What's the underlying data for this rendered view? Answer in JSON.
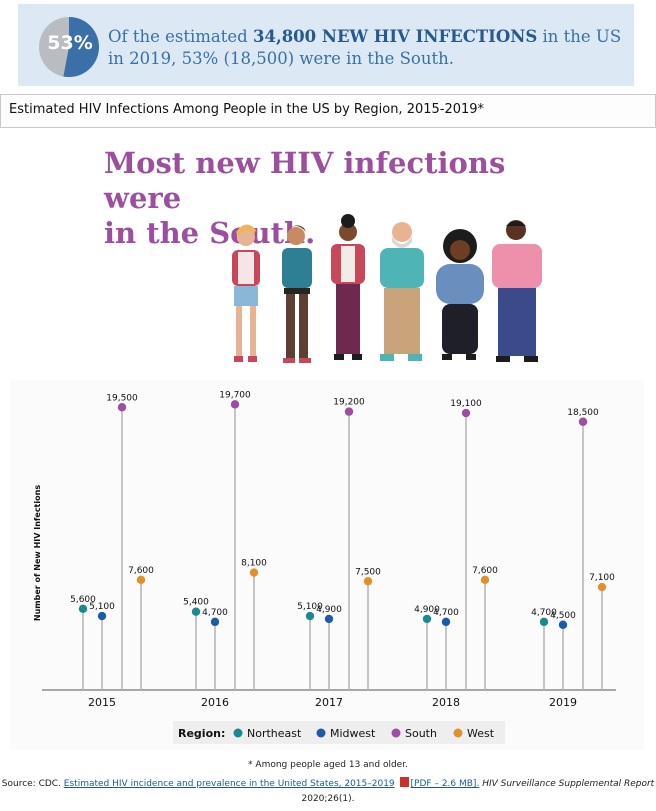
{
  "banner": {
    "percent": "53%",
    "text_pre": "Of the estimated ",
    "text_bold": "34,800 NEW HIV INFECTIONS",
    "text_post": " in the US in 2019, 53% (18,500) were in the South.",
    "pie_fraction": 0.53,
    "color_main": "#3a6fa8",
    "color_rest": "#b9bcc0"
  },
  "section": {
    "title": "Estimated HIV Infections Among People in the US by Region, 2015-2019*"
  },
  "headline": {
    "line1": "Most new HIV infections were",
    "line2": "in the South."
  },
  "chart_data": {
    "type": "lollipop",
    "title": "",
    "ylabel": "Number of New HIV Infections",
    "xlabel": "",
    "ylim": [
      0,
      20000
    ],
    "categories": [
      "2015",
      "2016",
      "2017",
      "2018",
      "2019"
    ],
    "series": [
      {
        "name": "Northeast",
        "color": "#1b8a8f",
        "values": [
          5600,
          5400,
          5100,
          4900,
          4700
        ],
        "labels": [
          "5,600",
          "5,400",
          "5,100",
          "4,900",
          "4,700"
        ]
      },
      {
        "name": "Midwest",
        "color": "#1e5aa8",
        "values": [
          5100,
          4700,
          4900,
          4700,
          4500
        ],
        "labels": [
          "5,100",
          "4,700",
          "4,900",
          "4,700",
          "4,500"
        ]
      },
      {
        "name": "South",
        "color": "#9b4f9e",
        "values": [
          19500,
          19700,
          19200,
          19100,
          18500
        ],
        "labels": [
          "19,500",
          "19,700",
          "19,200",
          "19,100",
          "18,500"
        ]
      },
      {
        "name": "West",
        "color": "#e0922a",
        "values": [
          7600,
          8100,
          7500,
          7600,
          7100
        ],
        "labels": [
          "7,600",
          "8,100",
          "7,500",
          "7,600",
          "7,100"
        ]
      }
    ],
    "legend_title": "Region:",
    "legend_position": "bottom"
  },
  "footnote": "* Among people aged 13 and older.",
  "source": {
    "prefix": "Source: CDC. ",
    "link_text": "Estimated HIV incidence and prevalence in the United States, 2015–2019",
    "pdf_text": "[PDF – 2.6 MB].",
    "journal": "HIV Surveillance Supplemental Report",
    "suffix": "2020;26(1)."
  },
  "illustration": {
    "icon": "people-group-illustration"
  }
}
